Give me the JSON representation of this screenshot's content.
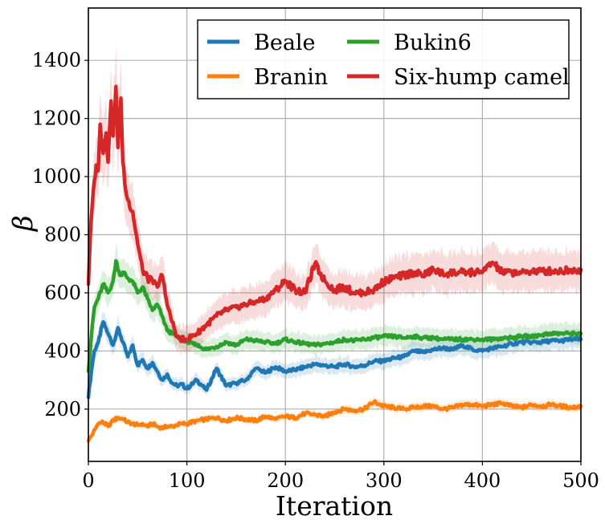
{
  "chart_data": {
    "type": "line",
    "title": "",
    "xlabel": "Iteration",
    "ylabel": "β",
    "xlim": [
      0,
      500
    ],
    "ylim": [
      20,
      1580
    ],
    "xticks": [
      0,
      100,
      200,
      300,
      400,
      500
    ],
    "yticks": [
      200,
      400,
      600,
      800,
      1000,
      1200,
      1400
    ],
    "grid": true,
    "legend_position": "top-right",
    "series": [
      {
        "name": "Beale",
        "color": "#1f77b4",
        "x": [
          0,
          3,
          6,
          10,
          15,
          20,
          25,
          30,
          35,
          40,
          45,
          50,
          55,
          60,
          65,
          70,
          75,
          80,
          85,
          90,
          95,
          100,
          110,
          120,
          130,
          140,
          150,
          160,
          170,
          180,
          190,
          200,
          210,
          220,
          230,
          240,
          250,
          260,
          270,
          280,
          290,
          300,
          310,
          320,
          330,
          340,
          350,
          360,
          370,
          380,
          390,
          400,
          410,
          420,
          430,
          440,
          450,
          460,
          470,
          480,
          490,
          500
        ],
        "y": [
          240,
          330,
          400,
          430,
          500,
          460,
          420,
          480,
          430,
          380,
          420,
          350,
          370,
          340,
          360,
          330,
          300,
          320,
          290,
          280,
          285,
          270,
          300,
          265,
          340,
          280,
          290,
          300,
          340,
          325,
          345,
          330,
          335,
          345,
          355,
          350,
          345,
          355,
          345,
          350,
          365,
          365,
          375,
          380,
          400,
          395,
          405,
          410,
          405,
          420,
          405,
          400,
          410,
          415,
          425,
          430,
          430,
          430,
          435,
          435,
          440,
          440
        ]
      },
      {
        "name": "Branin",
        "color": "#ff7f0e",
        "x": [
          0,
          5,
          10,
          15,
          20,
          25,
          30,
          35,
          40,
          45,
          50,
          55,
          60,
          65,
          70,
          75,
          80,
          85,
          90,
          95,
          100,
          110,
          120,
          130,
          140,
          150,
          160,
          170,
          180,
          190,
          200,
          210,
          220,
          230,
          240,
          250,
          260,
          270,
          280,
          290,
          300,
          310,
          320,
          330,
          340,
          350,
          360,
          370,
          380,
          390,
          400,
          410,
          420,
          430,
          440,
          450,
          460,
          470,
          480,
          490,
          500
        ],
        "y": [
          90,
          120,
          150,
          155,
          140,
          160,
          170,
          165,
          155,
          150,
          145,
          150,
          140,
          150,
          140,
          135,
          140,
          140,
          145,
          150,
          150,
          160,
          165,
          170,
          160,
          170,
          165,
          160,
          175,
          165,
          175,
          170,
          185,
          180,
          175,
          190,
          200,
          195,
          200,
          225,
          210,
          205,
          200,
          205,
          210,
          210,
          200,
          205,
          215,
          215,
          210,
          215,
          220,
          210,
          205,
          215,
          210,
          215,
          210,
          205,
          210
        ]
      },
      {
        "name": "Bukin6",
        "color": "#2ca02c",
        "x": [
          0,
          3,
          6,
          10,
          15,
          20,
          25,
          28,
          32,
          36,
          40,
          45,
          50,
          55,
          60,
          65,
          70,
          75,
          80,
          85,
          90,
          95,
          100,
          110,
          120,
          130,
          140,
          150,
          160,
          170,
          180,
          190,
          200,
          210,
          220,
          230,
          240,
          250,
          260,
          270,
          280,
          290,
          300,
          310,
          320,
          330,
          340,
          350,
          360,
          370,
          380,
          390,
          400,
          410,
          420,
          430,
          440,
          450,
          460,
          470,
          480,
          490,
          500
        ],
        "y": [
          330,
          450,
          550,
          580,
          630,
          600,
          640,
          710,
          660,
          670,
          650,
          640,
          600,
          620,
          580,
          540,
          560,
          520,
          470,
          460,
          450,
          440,
          430,
          420,
          405,
          415,
          430,
          420,
          440,
          435,
          430,
          425,
          440,
          430,
          425,
          420,
          425,
          430,
          440,
          435,
          440,
          445,
          450,
          450,
          445,
          450,
          445,
          445,
          440,
          440,
          440,
          440,
          440,
          440,
          445,
          445,
          450,
          450,
          455,
          460,
          460,
          460,
          460
        ]
      },
      {
        "name": "Six-hump camel",
        "color": "#d62728",
        "x": [
          0,
          2,
          5,
          8,
          10,
          12,
          15,
          18,
          20,
          23,
          25,
          28,
          30,
          33,
          35,
          38,
          40,
          45,
          50,
          55,
          60,
          65,
          70,
          75,
          80,
          85,
          90,
          95,
          100,
          110,
          120,
          130,
          140,
          150,
          160,
          170,
          180,
          190,
          200,
          210,
          220,
          230,
          240,
          250,
          260,
          270,
          280,
          290,
          300,
          310,
          320,
          330,
          340,
          350,
          360,
          370,
          380,
          390,
          400,
          410,
          420,
          430,
          440,
          450,
          460,
          470,
          480,
          490,
          500
        ],
        "y": [
          630,
          800,
          950,
          1040,
          1020,
          1180,
          1080,
          1150,
          1050,
          1260,
          1140,
          1310,
          1100,
          1270,
          1050,
          950,
          920,
          880,
          770,
          680,
          650,
          640,
          620,
          660,
          560,
          500,
          450,
          440,
          440,
          460,
          490,
          520,
          540,
          550,
          560,
          570,
          580,
          610,
          640,
          610,
          600,
          700,
          640,
          610,
          620,
          600,
          600,
          610,
          640,
          650,
          660,
          670,
          660,
          680,
          665,
          670,
          670,
          670,
          670,
          705,
          670,
          670,
          670,
          675,
          675,
          675,
          675,
          680,
          680
        ]
      }
    ]
  }
}
